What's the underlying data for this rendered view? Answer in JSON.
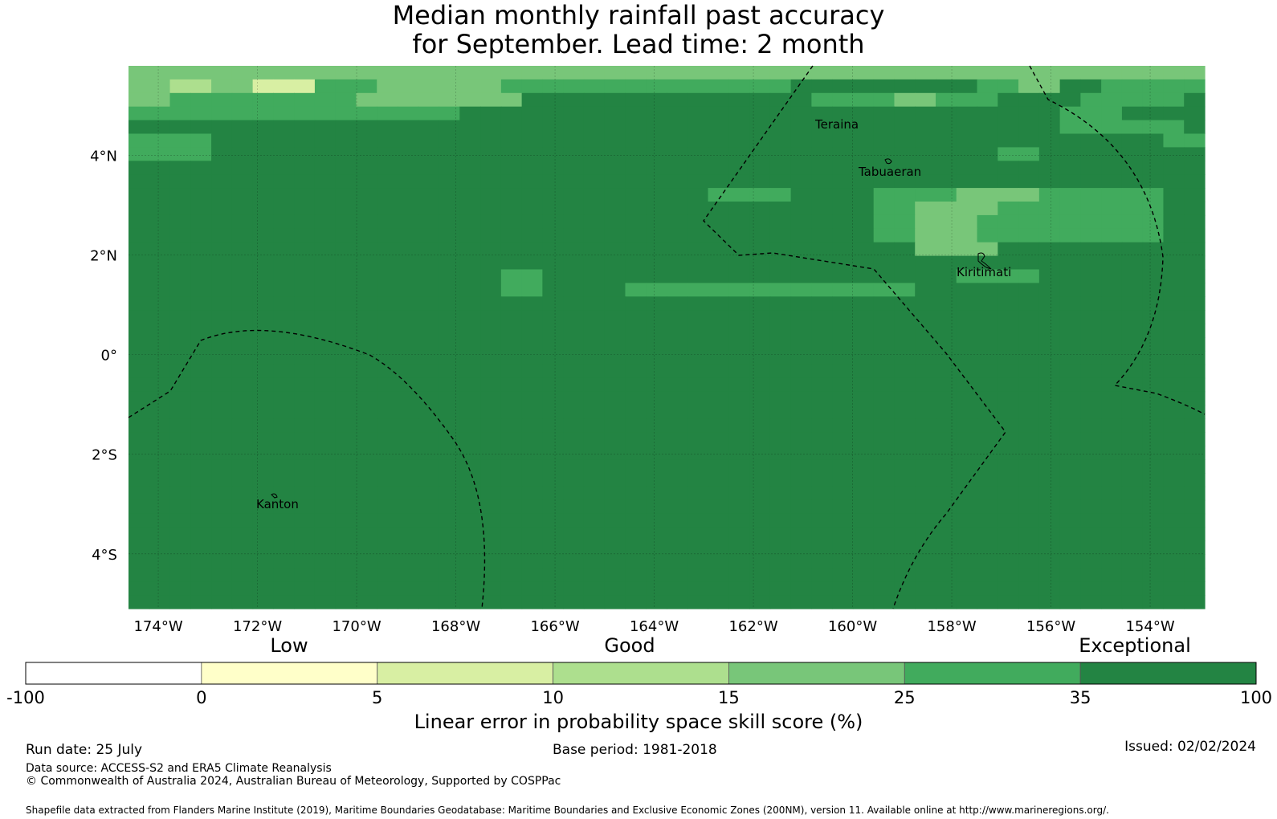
{
  "title": {
    "line1": "Median monthly rainfall past accuracy",
    "line2": "for September. Lead time: 2 month"
  },
  "map": {
    "lat_labels": [
      "4°N",
      "2°N",
      "0°",
      "2°S",
      "4°S"
    ],
    "lon_labels": [
      "174°W",
      "172°W",
      "170°W",
      "168°W",
      "166°W",
      "164°W",
      "162°W",
      "160°W",
      "158°W",
      "156°W",
      "154°W"
    ],
    "places": [
      "Teraina",
      "Tabuaeran",
      "Kiritimati",
      "Kanton"
    ],
    "boundary_style": "dashed",
    "gridlines": true,
    "grid_key": [
      "#ffffff",
      "#ffffc9",
      "#d8efa3",
      "#addf8e",
      "#78c679",
      "#41ab5d",
      "#238443"
    ],
    "grid": [
      "4444444444444444444444444444444444444444444444444444",
      "4433442225554444445555555555555566666666655446655555",
      "4455555555544444444666666666666665555445556666555556",
      "5555555555555555666666666666666666666666666665556666",
      "6666666666666666666666666666666666666666666665555556",
      "5555666666666666666666666666666666666666666666666655",
      "5555666666666666666666666666666666666666665566666666",
      "6666666666666666666666666666666666666666666666666666",
      "6666666666666666666666666666666666666666666666666666",
      "6666666666666666666666666666555566665555444455555566",
      "6666666666666666666666666666666666665544445555555566",
      "6666666666666666666666666666666666665544455555555566",
      "6666666666666666666666666666666666665544455555555566",
      "6666666666666666666666666666666666666644446666666666",
      "6666666666666666666666666666666666666666666666666666",
      "6666666666666666665566666666666666666666555566666666",
      "6666666666666666665566665555555555555566666666666666",
      "6666666666666666666666666666666666666666666666666666",
      "6666666666666666666666666666666666666666666666666666",
      "6666666666666666666666666666666666666666666666666666",
      "6666666666666666666666666666666666666666666666666666",
      "6666666666666666666666666666666666666666666666666666",
      "6666666666666666666666666666666666666666666666666666",
      "6666666666666666666666666666666666666666666666666666",
      "6666666666666666666666666666666666666666666666666666",
      "6666666666666666666666666666666666666666666666666666",
      "6666666666666666666666666666666666666666666666666666",
      "6666666666666666666666666666666666666666666666666666",
      "6666666666666666666666666666666666666666666666666666",
      "6666666666666666666666666666666666666666666666666666",
      "6666666666666666666666666666666666666666666666666666",
      "6666666666666666666666666666666666666666666666666666",
      "6666666666666666666666666666666666666666666666666666",
      "6666666666666666666666666666666666666666666666666666",
      "6666666666666666666666666666666666666666666666666666",
      "6666666666666666666666666666666666666666666666666666",
      "6666666666666666666666666666666666666666666666666666",
      "6666666666666666666666666666666666666666666666666666",
      "6666666666666666666666666666666666666666666666666666",
      "6666666666666666666666666666666666666666666666666666"
    ]
  },
  "colorbar": {
    "category_labels": [
      "Low",
      "Good",
      "Exceptional"
    ],
    "colors": [
      "#ffffff",
      "#ffffc9",
      "#d8efa3",
      "#addf8e",
      "#78c679",
      "#41ab5d",
      "#238443"
    ],
    "tick_labels": [
      "-100",
      "0",
      "5",
      "10",
      "15",
      "25",
      "35",
      "100"
    ],
    "label": "Linear error in probability space skill score (%)"
  },
  "footer": {
    "run_date": "Run date: 25 July",
    "base_period": "Base period: 1981-2018",
    "issued": "Issued: 02/02/2024",
    "data_source": "Data source: ACCESS-S2 and ERA5 Climate Reanalysis",
    "copyright": "© Commonwealth of Australia 2024, Australian Bureau of Meteorology, Supported by COSPPac",
    "shapefile": "Shapefile data extracted from Flanders Marine Institute (2019), Maritime Boundaries Geodatabase: Maritime Boundaries and Exclusive Economic Zones (200NM), version 11. Available online at http://www.marineregions.org/."
  }
}
